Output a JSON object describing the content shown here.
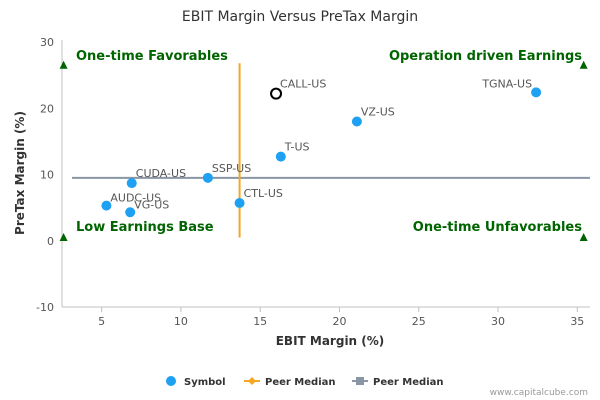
{
  "chart_data": {
    "type": "scatter",
    "title": "EBIT Margin Versus PreTax Margin",
    "xlabel": "EBIT Margin (%)",
    "ylabel": "PreTax Margin (%)",
    "xlim": [
      2.5,
      35.8
    ],
    "ylim": [
      -10,
      30
    ],
    "x_ticks": [
      5,
      10,
      15,
      20,
      25,
      30,
      35
    ],
    "y_ticks": [
      -10,
      0,
      10,
      20,
      30
    ],
    "grid": false,
    "legend_position": "bottom-center",
    "colors": {
      "symbol": "#1ea1f2",
      "peer_median_vertical": "#f5a623",
      "peer_median_horizontal": "#8a96a6",
      "highlight_ring": "#000000",
      "quadrant_text": "#006400"
    },
    "points": [
      {
        "label": "CALL-US",
        "x": 16.0,
        "y": 22.2,
        "highlight": true
      },
      {
        "label": "TGNA-US",
        "x": 32.4,
        "y": 22.4,
        "highlight": false
      },
      {
        "label": "VZ-US",
        "x": 21.1,
        "y": 18.0,
        "highlight": false
      },
      {
        "label": "T-US",
        "x": 16.3,
        "y": 12.7,
        "highlight": false
      },
      {
        "label": "SSP-US",
        "x": 11.7,
        "y": 9.5,
        "highlight": false
      },
      {
        "label": "CUDA-US",
        "x": 6.9,
        "y": 8.7,
        "highlight": false
      },
      {
        "label": "CTL-US",
        "x": 13.7,
        "y": 5.7,
        "highlight": false
      },
      {
        "label": "AUDC-US",
        "x": 5.3,
        "y": 5.3,
        "highlight": false
      },
      {
        "label": "VG-US",
        "x": 6.8,
        "y": 4.3,
        "highlight": false
      }
    ],
    "peer_median": {
      "x": 13.7,
      "y": 9.5,
      "y_range": [
        0.5,
        26.8
      ]
    },
    "quadrants": {
      "top_left": "One-time Favorables",
      "top_right": "Operation driven Earnings",
      "bottom_left": "Low Earnings Base",
      "bottom_right": "One-time Unfavorables"
    },
    "legend": [
      {
        "name": "Symbol",
        "marker": "circle",
        "color": "#1ea1f2"
      },
      {
        "name": "Peer Median",
        "marker": "diamond-line",
        "color": "#f5a623"
      },
      {
        "name": "Peer Median",
        "marker": "square-line",
        "color": "#8a96a6"
      }
    ]
  },
  "credit": "www.capitalcube.com"
}
